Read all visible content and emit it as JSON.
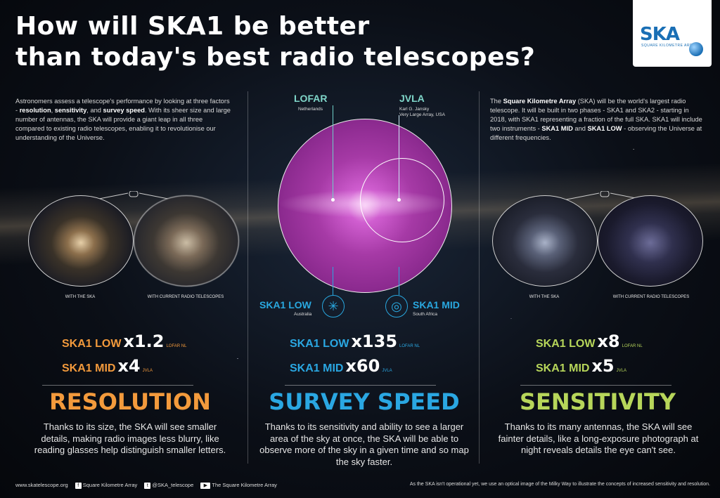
{
  "title_line1": "How will SKA1 be better",
  "title_line2": "than today's best radio telescopes?",
  "logo": {
    "text": "SKA",
    "subtitle": "SQUARE KILOMETRE ARRAY"
  },
  "intro_left": {
    "t1": "Astronomers assess a telescope's performance by looking at three factors - ",
    "b1": "resolution",
    "t2": ", ",
    "b2": "sensitivity",
    "t3": ", and ",
    "b3": "survey speed",
    "t4": ". With its sheer size and large number of antennas, the SKA will provide a giant leap in all three compared to existing radio telescopes, enabling it to revolutionise our understanding of the Universe."
  },
  "intro_right": {
    "t1": "The ",
    "b1": "Square Kilometre Array",
    "t2": " (SKA) will be the world's largest radio telescope. It will be built in two phases - SKA1 and SKA2 - starting in 2018, with SKA1 representing a fraction of the full SKA. SKA1 will include two instruments - ",
    "b2": "SKA1 MID",
    "t3": " and ",
    "b3": "SKA1 LOW",
    "t4": " - observing the Universe at different frequencies."
  },
  "resolution": {
    "caption_ska": "WITH THE SKA",
    "caption_current": "WITH CURRENT RADIO TELESCOPES",
    "low_name": "SKA1 LOW",
    "low_val": "x1.2",
    "low_ref": "LOFAR NL",
    "mid_name": "SKA1 MID",
    "mid_val": "x4",
    "mid_ref": "JVLA",
    "heading": "RESOLUTION",
    "desc": "Thanks to its size, the SKA will see smaller details, making radio images less blurry, like reading glasses help distinguish smaller letters."
  },
  "survey": {
    "lofar": "LOFAR",
    "lofar_sub": "Netherlands",
    "jvla": "JVLA",
    "jvla_sub1": "Karl G. Jansky",
    "jvla_sub2": "Very Large Array, USA",
    "ska_low": "SKA1 LOW",
    "ska_low_sub": "Australia",
    "ska_mid": "SKA1 MID",
    "ska_mid_sub": "South Africa",
    "low_name": "SKA1 LOW",
    "low_val": "x135",
    "low_ref": "LOFAR NL",
    "mid_name": "SKA1 MID",
    "mid_val": "x60",
    "mid_ref": "JVLA",
    "heading": "SURVEY SPEED",
    "desc": "Thanks to its sensitivity and ability to see a larger area of the sky at once, the SKA will be able to observe more of the sky in a given time and so map the sky faster."
  },
  "sensitivity": {
    "caption_ska": "WITH THE SKA",
    "caption_current": "WITH CURRENT RADIO TELESCOPES",
    "low_name": "SKA1 LOW",
    "low_val": "x8",
    "low_ref": "LOFAR NL",
    "mid_name": "SKA1 MID",
    "mid_val": "x5",
    "mid_ref": "JVLA",
    "heading": "SENSITIVITY",
    "desc": "Thanks to its many antennas, the SKA will see fainter details, like a long-exposure photograph at night reveals details the eye can't see."
  },
  "footer": {
    "website": "www.skatelescope.org",
    "facebook": "Square Kilometre Array",
    "twitter": "@SKA_telescope",
    "youtube": "The Square Kilometre Array",
    "note": "As the SKA isn't operational yet, we use an optical image of the Milky Way to illustrate the concepts of increased sensitivity and resolution."
  },
  "colors": {
    "resolution": "#f39a3c",
    "survey": "#2aa7e2",
    "sensitivity": "#b7d65a",
    "lofar": "#7fd6c9"
  }
}
